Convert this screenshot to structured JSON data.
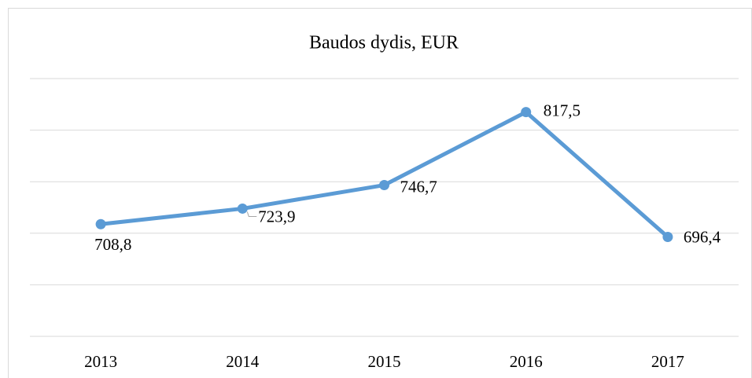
{
  "chart_data": {
    "type": "line",
    "title": "Baudos dydis, EUR",
    "categories": [
      "2013",
      "2014",
      "2015",
      "2016",
      "2017"
    ],
    "series": [
      {
        "name": "Baudos dydis, EUR",
        "color": "#5b9bd5",
        "values": [
          708.8,
          723.9,
          746.7,
          817.5,
          696.4
        ],
        "value_labels": [
          "708,8",
          "723,9",
          "746,7",
          "817,5",
          "696,4"
        ]
      }
    ],
    "ylim": [
      600,
      850
    ],
    "yticks": [
      600,
      650,
      700,
      750,
      800,
      850
    ],
    "grid": true
  }
}
